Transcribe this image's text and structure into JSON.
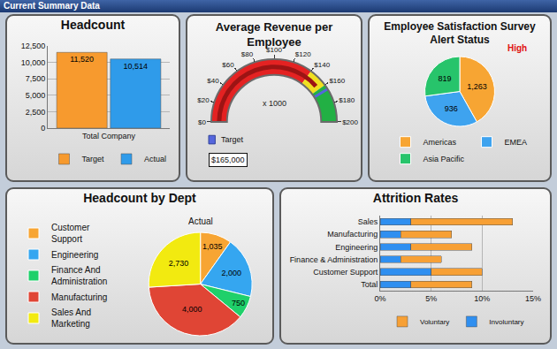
{
  "page_title": "Current Summary Data",
  "chart_data": [
    {
      "type": "bar",
      "title": "Headcount",
      "categories": [
        "Total Company"
      ],
      "series": [
        {
          "name": "Target",
          "color": "#f79a2e",
          "values": [
            11520
          ],
          "value_labels": [
            "11,520"
          ]
        },
        {
          "name": "Actual",
          "color": "#2f9bea",
          "values": [
            10514
          ],
          "value_labels": [
            "10,514"
          ]
        }
      ],
      "ylim": [
        0,
        12500
      ],
      "yticks": [
        0,
        {
          "value": 2500,
          "label": "2,500"
        },
        {
          "value": 5000,
          "label": "5,000"
        },
        {
          "value": 7500,
          "label": "7,500"
        },
        {
          "value": 10000,
          "label": "10,000"
        },
        {
          "value": 12500,
          "label": "12,500"
        }
      ],
      "grid": true,
      "legend": "bottom",
      "data_labels": true
    },
    {
      "type": "gauge",
      "title": "Average Revenue per\nEmployee",
      "unit_label": "x 1000",
      "value": 155,
      "target": 165,
      "target_name": "Target",
      "target_label": "$165,000",
      "ylim": [
        0,
        200
      ],
      "yticks": [
        {
          "value": 0,
          "label": "$0"
        },
        {
          "value": 20,
          "label": "$20"
        },
        {
          "value": 40,
          "label": "$40"
        },
        {
          "value": 60,
          "label": "$60"
        },
        {
          "value": 80,
          "label": "$80"
        },
        {
          "value": 100,
          "label": "$100"
        },
        {
          "value": 120,
          "label": "$120"
        },
        {
          "value": 140,
          "label": "$140"
        },
        {
          "value": 160,
          "label": "$160"
        },
        {
          "value": 180,
          "label": "$180"
        },
        {
          "value": 200,
          "label": "$200"
        }
      ],
      "bands": [
        {
          "from": 0,
          "to": 140,
          "color": "#e42222"
        },
        {
          "from": 140,
          "to": 160,
          "color": "#f0e020"
        },
        {
          "from": 160,
          "to": 200,
          "color": "#22b044"
        }
      ]
    },
    {
      "type": "pie",
      "title": "Employee Satisfaction Survey\nAlert Status",
      "alert": "High",
      "categories": [
        "Americas",
        "EMEA",
        "Asia Pacific"
      ],
      "values": [
        1263,
        936,
        819
      ],
      "value_labels": [
        "1,263",
        "936",
        "819"
      ],
      "colors": [
        "#f7a533",
        "#3ea3ef",
        "#27c46b"
      ],
      "legend": "bottom",
      "data_labels": true
    },
    {
      "type": "pie",
      "title": "Headcount by Dept",
      "subtitle": "Actual",
      "categories": [
        "Customer\nSupport",
        "Engineering",
        "Finance And\nAdministration",
        "Manufacturing",
        "Sales And\nMarketing"
      ],
      "values": [
        1035,
        2000,
        750,
        4000,
        2730
      ],
      "value_labels": [
        "1,035",
        "2,000",
        "750",
        "4,000",
        "2,730"
      ],
      "colors": [
        "#f7a533",
        "#35a6f0",
        "#1fd06a",
        "#e04535",
        "#f2ea10"
      ],
      "legend": "left",
      "data_labels": true
    },
    {
      "type": "bar",
      "title": "Attrition Rates",
      "orientation": "horizontal",
      "stacked": true,
      "categories": [
        "Sales",
        "Manufacturing",
        "Engineering",
        "Finance & Administration",
        "Customer Support",
        "Total"
      ],
      "series": [
        {
          "name": "Involuntary",
          "color": "#2f8ff0",
          "values": [
            3,
            2,
            3,
            2,
            5,
            3
          ]
        },
        {
          "name": "Voluntary",
          "color": "#f7a035",
          "values": [
            10,
            5,
            6,
            4,
            5,
            6
          ]
        }
      ],
      "xlim": [
        0,
        15
      ],
      "xticks": [
        {
          "value": 0,
          "label": "0%"
        },
        {
          "value": 5,
          "label": "5%"
        },
        {
          "value": 10,
          "label": "10%"
        },
        {
          "value": 15,
          "label": "15%"
        }
      ],
      "grid": true,
      "legend": "bottom"
    }
  ]
}
